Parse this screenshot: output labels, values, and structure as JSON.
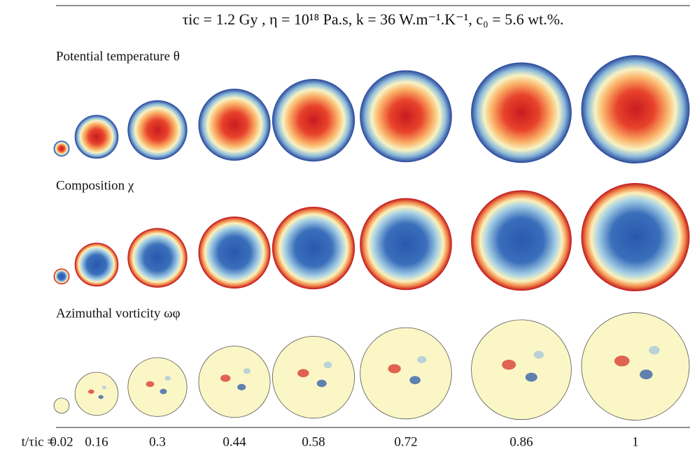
{
  "figure": {
    "title": "τic = 1.2 Gy , η = 10¹⁸ Pa.s, k = 36 W.m⁻¹.K⁻¹, c₀ = 5.6 wt.%.",
    "rows": [
      {
        "label": "Potential temperature θ"
      },
      {
        "label": "Composition χ"
      },
      {
        "label": "Azimuthal vorticity ωφ"
      }
    ],
    "axis_label": "t/τic =",
    "times": [
      0.02,
      0.16,
      0.3,
      0.44,
      0.58,
      0.72,
      0.86,
      1
    ]
  }
}
